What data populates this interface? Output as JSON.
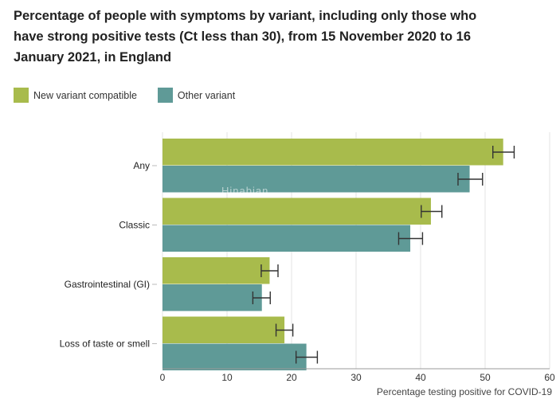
{
  "chart_data": {
    "type": "bar",
    "orientation": "horizontal",
    "title": "Percentage of people with symptoms by variant, including only those who\nhave strong positive tests (Ct less than 30), from 15 November 2020 to 16\nJanuary 2021, in England",
    "xlabel": "Percentage testing positive for COVID-19",
    "ylabel": "",
    "xlim": [
      0,
      60
    ],
    "xticks": [
      0,
      10,
      20,
      30,
      40,
      50,
      60
    ],
    "grid": "vertical",
    "legend_position": "top-left",
    "categories": [
      "Any",
      "Classic",
      "Gastrointestinal (GI)",
      "Loss of taste or smell"
    ],
    "series": [
      {
        "name": "New variant compatible",
        "color": "#a8bb4c",
        "values": [
          52.8,
          41.6,
          16.6,
          18.9
        ],
        "error_low": [
          51.2,
          40.1,
          15.3,
          17.6
        ],
        "error_high": [
          54.5,
          43.3,
          17.9,
          20.2
        ]
      },
      {
        "name": "Other variant",
        "color": "#5f9a97",
        "values": [
          47.6,
          38.4,
          15.4,
          22.3
        ],
        "error_low": [
          45.8,
          36.6,
          14.0,
          20.7
        ],
        "error_high": [
          49.6,
          40.3,
          16.7,
          24.0
        ]
      }
    ]
  },
  "watermark": {
    "text": "Hinabian"
  }
}
